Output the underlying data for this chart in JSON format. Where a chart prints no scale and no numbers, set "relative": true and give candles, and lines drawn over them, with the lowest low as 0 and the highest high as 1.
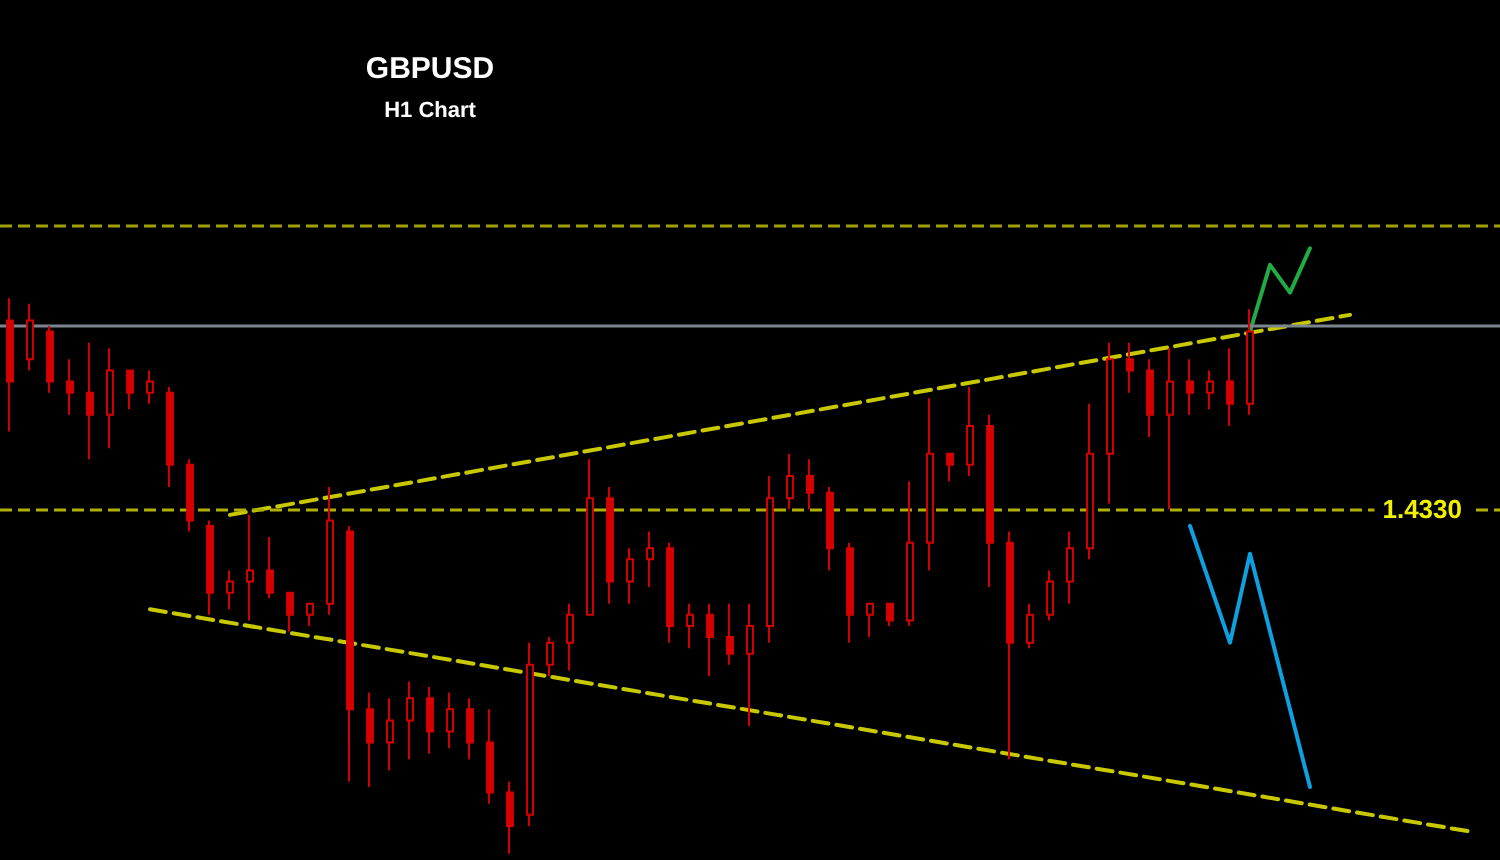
{
  "chart_data": {
    "type": "candlestick",
    "title": "GBPUSD",
    "subtitle": "H1 Chart",
    "relative": true,
    "color": "#d40000",
    "grid": false,
    "tick_labels": false,
    "marker": "none",
    "categories": [
      null,
      null,
      null,
      null,
      null,
      null,
      null,
      null,
      null,
      null,
      null,
      null,
      null,
      null,
      null,
      null,
      null,
      null,
      null,
      null,
      null,
      null,
      null,
      null,
      null,
      null,
      null,
      null,
      null,
      null,
      null,
      null,
      null,
      null,
      null,
      null,
      null,
      null,
      null,
      null,
      null,
      null,
      null,
      null,
      null,
      null,
      null,
      null,
      null,
      null,
      null,
      null,
      null,
      null,
      null,
      null,
      null,
      null,
      null,
      null,
      null,
      null,
      null,
      null,
      null,
      null,
      null,
      null,
      null,
      null,
      null,
      null,
      null,
      null,
      null
    ],
    "ohlc": [
      [
        0.96,
        1.0,
        0.76,
        0.85
      ],
      [
        0.89,
        0.99,
        0.87,
        0.96
      ],
      [
        0.94,
        0.95,
        0.83,
        0.85
      ],
      [
        0.85,
        0.89,
        0.79,
        0.83
      ],
      [
        0.83,
        0.92,
        0.71,
        0.79
      ],
      [
        0.79,
        0.91,
        0.73,
        0.87
      ],
      [
        0.87,
        0.87,
        0.8,
        0.83
      ],
      [
        0.83,
        0.87,
        0.81,
        0.85
      ],
      [
        0.83,
        0.84,
        0.66,
        0.7
      ],
      [
        0.7,
        0.71,
        0.58,
        0.6
      ],
      [
        0.59,
        0.6,
        0.43,
        0.47
      ],
      [
        0.47,
        0.51,
        0.44,
        0.49
      ],
      [
        0.49,
        0.61,
        0.42,
        0.51
      ],
      [
        0.51,
        0.57,
        0.46,
        0.47
      ],
      [
        0.47,
        0.47,
        0.4,
        0.43
      ],
      [
        0.43,
        0.45,
        0.41,
        0.45
      ],
      [
        0.45,
        0.66,
        0.43,
        0.6
      ],
      [
        0.58,
        0.59,
        0.13,
        0.26
      ],
      [
        0.26,
        0.29,
        0.12,
        0.2
      ],
      [
        0.2,
        0.28,
        0.15,
        0.24
      ],
      [
        0.24,
        0.31,
        0.17,
        0.28
      ],
      [
        0.28,
        0.3,
        0.18,
        0.22
      ],
      [
        0.22,
        0.29,
        0.19,
        0.26
      ],
      [
        0.26,
        0.28,
        0.17,
        0.2
      ],
      [
        0.2,
        0.26,
        0.09,
        0.11
      ],
      [
        0.11,
        0.13,
        0.0,
        0.05
      ],
      [
        0.07,
        0.38,
        0.05,
        0.34
      ],
      [
        0.34,
        0.39,
        0.32,
        0.38
      ],
      [
        0.38,
        0.45,
        0.33,
        0.43
      ],
      [
        0.43,
        0.71,
        0.43,
        0.64
      ],
      [
        0.64,
        0.66,
        0.45,
        0.49
      ],
      [
        0.49,
        0.55,
        0.45,
        0.53
      ],
      [
        0.53,
        0.58,
        0.48,
        0.55
      ],
      [
        0.55,
        0.56,
        0.38,
        0.41
      ],
      [
        0.41,
        0.45,
        0.37,
        0.43
      ],
      [
        0.43,
        0.45,
        0.32,
        0.39
      ],
      [
        0.39,
        0.45,
        0.34,
        0.36
      ],
      [
        0.36,
        0.45,
        0.23,
        0.41
      ],
      [
        0.41,
        0.68,
        0.38,
        0.64
      ],
      [
        0.64,
        0.72,
        0.62,
        0.68
      ],
      [
        0.68,
        0.71,
        0.62,
        0.65
      ],
      [
        0.65,
        0.66,
        0.51,
        0.55
      ],
      [
        0.55,
        0.56,
        0.38,
        0.43
      ],
      [
        0.43,
        0.45,
        0.39,
        0.45
      ],
      [
        0.45,
        0.45,
        0.41,
        0.42
      ],
      [
        0.42,
        0.67,
        0.41,
        0.56
      ],
      [
        0.56,
        0.82,
        0.51,
        0.72
      ],
      [
        0.72,
        0.72,
        0.67,
        0.7
      ],
      [
        0.7,
        0.84,
        0.68,
        0.77
      ],
      [
        0.77,
        0.79,
        0.48,
        0.56
      ],
      [
        0.56,
        0.58,
        0.17,
        0.38
      ],
      [
        0.38,
        0.45,
        0.37,
        0.43
      ],
      [
        0.43,
        0.51,
        0.42,
        0.49
      ],
      [
        0.49,
        0.58,
        0.45,
        0.55
      ],
      [
        0.55,
        0.81,
        0.53,
        0.72
      ],
      [
        0.72,
        0.92,
        0.63,
        0.89
      ],
      [
        0.89,
        0.92,
        0.83,
        0.87
      ],
      [
        0.87,
        0.89,
        0.75,
        0.79
      ],
      [
        0.79,
        0.91,
        0.62,
        0.85
      ],
      [
        0.85,
        0.89,
        0.79,
        0.83
      ],
      [
        0.83,
        0.87,
        0.8,
        0.85
      ],
      [
        0.85,
        0.91,
        0.77,
        0.81
      ],
      [
        0.81,
        0.98,
        0.79,
        0.94
      ],
      null,
      null,
      null,
      null,
      null,
      null,
      null,
      null,
      null,
      null,
      null,
      null
    ],
    "annotations": [
      {
        "text": "1.4330",
        "y": 0.62
      }
    ],
    "series": [
      {
        "type": "line",
        "color": "#c8c800",
        "line_style": "dashed",
        "values": [
          null,
          null,
          null,
          null,
          null,
          null,
          null,
          null,
          null,
          null,
          null,
          0.61,
          null,
          null,
          null,
          null,
          null,
          null,
          null,
          null,
          null,
          null,
          null,
          null,
          null,
          null,
          null,
          null,
          null,
          null,
          null,
          null,
          null,
          null,
          null,
          null,
          null,
          null,
          null,
          null,
          null,
          null,
          null,
          null,
          null,
          null,
          null,
          null,
          null,
          null,
          null,
          null,
          null,
          null,
          null,
          null,
          null,
          null,
          null,
          null,
          null,
          null,
          null,
          null,
          null,
          null,
          null,
          0.97,
          null,
          null,
          null,
          null,
          null,
          null,
          null
        ]
      },
      {
        "type": "line",
        "color": "#c8c800",
        "line_style": "dashed",
        "values": [
          null,
          null,
          null,
          null,
          null,
          null,
          null,
          0.44,
          null,
          null,
          null,
          null,
          null,
          null,
          null,
          null,
          null,
          null,
          null,
          null,
          null,
          null,
          null,
          null,
          null,
          null,
          null,
          null,
          null,
          null,
          null,
          null,
          null,
          null,
          null,
          null,
          null,
          null,
          null,
          null,
          null,
          null,
          null,
          null,
          null,
          null,
          null,
          null,
          null,
          null,
          null,
          null,
          null,
          null,
          null,
          null,
          null,
          null,
          null,
          null,
          null,
          null,
          null,
          null,
          null,
          null,
          null,
          null,
          null,
          null,
          null,
          null,
          null,
          0.04,
          null
        ]
      },
      {
        "type": "line",
        "color": "#22aa44",
        "line_style": "solid",
        "values": [
          null,
          null,
          null,
          null,
          null,
          null,
          null,
          null,
          null,
          null,
          null,
          null,
          null,
          null,
          null,
          null,
          null,
          null,
          null,
          null,
          null,
          null,
          null,
          null,
          null,
          null,
          null,
          null,
          null,
          null,
          null,
          null,
          null,
          null,
          null,
          null,
          null,
          null,
          null,
          null,
          null,
          null,
          null,
          null,
          null,
          null,
          null,
          null,
          null,
          null,
          null,
          null,
          null,
          null,
          null,
          null,
          null,
          null,
          null,
          null,
          null,
          null,
          0.94,
          1.06,
          1.01,
          1.09,
          null,
          null,
          null,
          null,
          null,
          null,
          null,
          null,
          null
        ]
      },
      {
        "type": "line",
        "color": "#0fa0e0",
        "line_style": "solid",
        "values": [
          null,
          null,
          null,
          null,
          null,
          null,
          null,
          null,
          null,
          null,
          null,
          null,
          null,
          null,
          null,
          null,
          null,
          null,
          null,
          null,
          null,
          null,
          null,
          null,
          null,
          null,
          null,
          null,
          null,
          null,
          null,
          null,
          null,
          null,
          null,
          null,
          null,
          null,
          null,
          null,
          null,
          null,
          null,
          null,
          null,
          null,
          null,
          null,
          null,
          null,
          null,
          null,
          null,
          null,
          null,
          null,
          null,
          null,
          null,
          0.59,
          null,
          0.38,
          0.54,
          null,
          null,
          0.12,
          null,
          null,
          null,
          null,
          null,
          null,
          null,
          null,
          null
        ]
      }
    ],
    "ref_lines": [
      {
        "axis": "y",
        "value": 1.13,
        "color": "#a0a000",
        "line_style": "dashed"
      },
      {
        "axis": "y",
        "value": 0.95,
        "color": "#7a8590",
        "line_style": "solid"
      },
      {
        "axis": "y",
        "value": 0.62,
        "color": "#b0b000",
        "line_style": "dashed"
      }
    ]
  }
}
